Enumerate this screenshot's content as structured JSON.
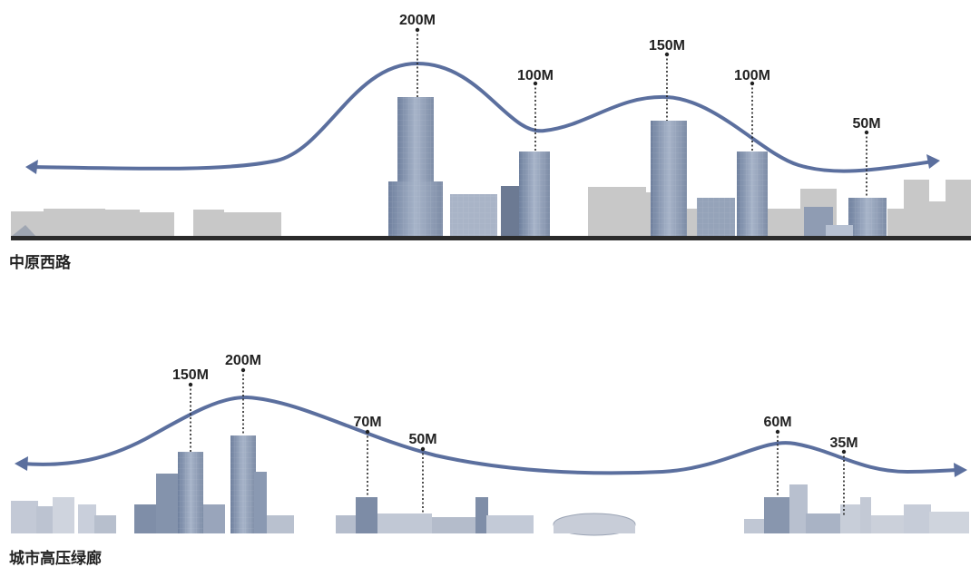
{
  "sections": [
    {
      "label": "中原西路",
      "height_labels": [
        "200M",
        "100M",
        "150M",
        "100M",
        "50M"
      ]
    },
    {
      "label": "城市高压绿廊",
      "height_labels": [
        "150M",
        "200M",
        "70M",
        "50M",
        "60M",
        "35M"
      ]
    }
  ],
  "colors": {
    "skyline_curve": "#5b6f9e",
    "ground": "#2b2b2b",
    "tower_glass": "#8b9ab3",
    "background_building": "#c8c8c8",
    "label_text": "#222222"
  },
  "icons": [
    "arrow-left-icon",
    "arrow-right-icon"
  ]
}
